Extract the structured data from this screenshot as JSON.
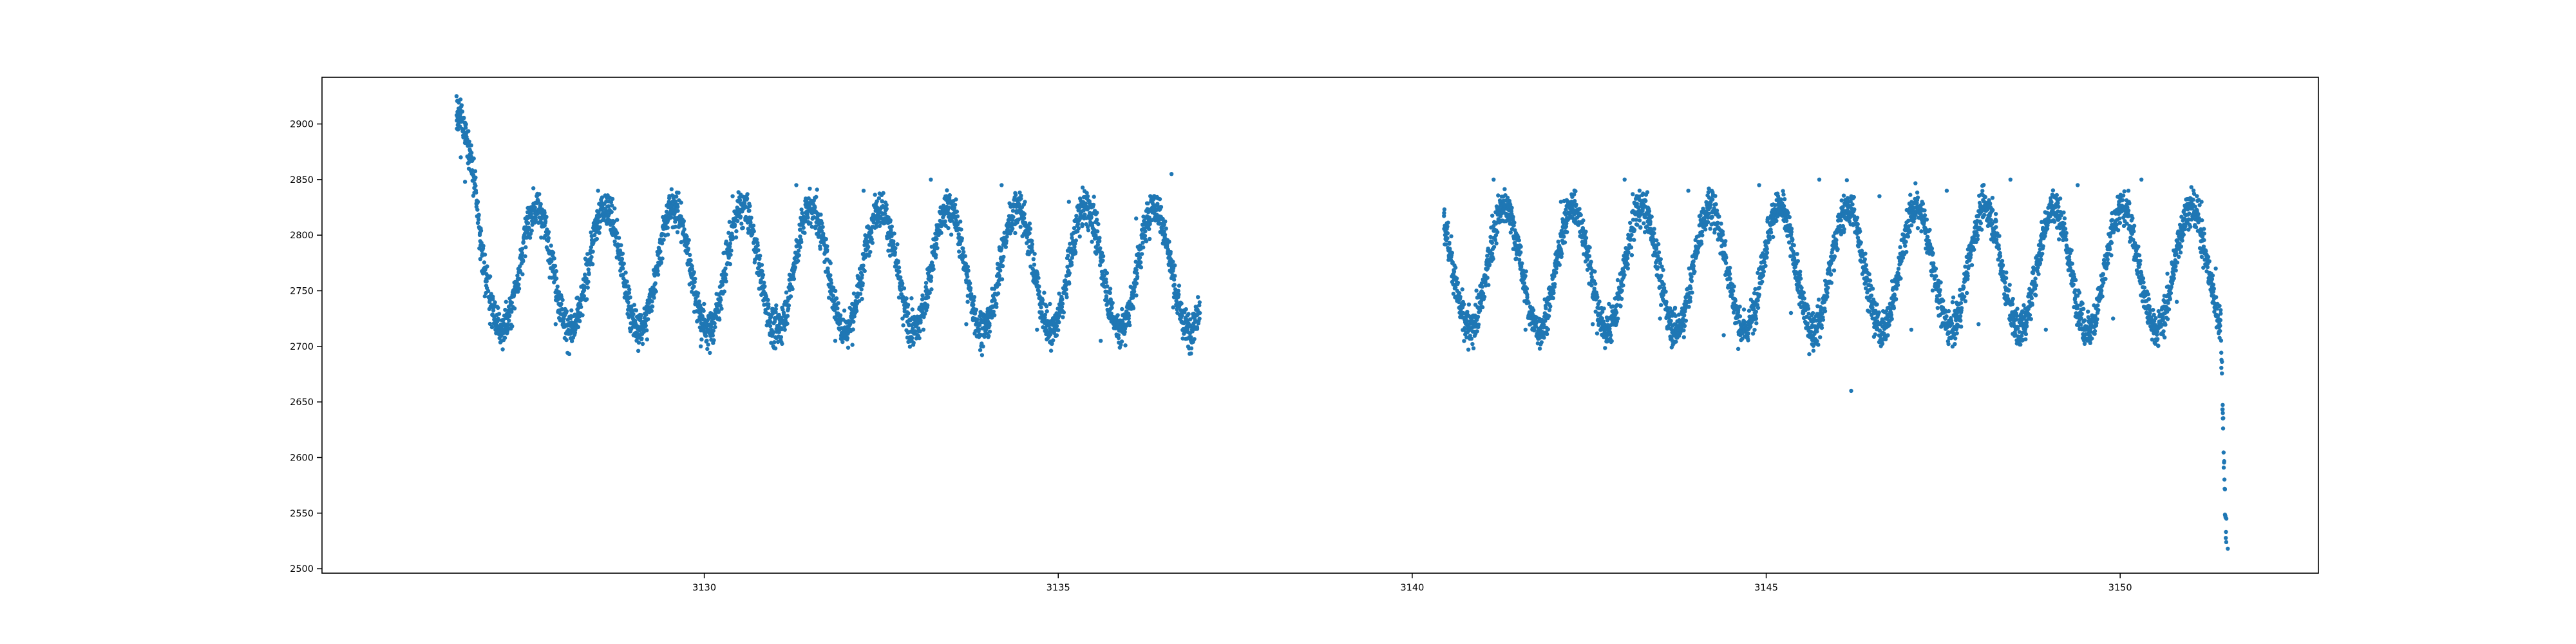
{
  "chart_data": {
    "type": "scatter",
    "title": "",
    "xlabel": "",
    "ylabel": "",
    "xlim": [
      3124.6,
      3152.8
    ],
    "ylim": [
      2496,
      2942
    ],
    "x_ticks": [
      3130,
      3135,
      3140,
      3145,
      3150
    ],
    "y_ticks": [
      2500,
      2550,
      2600,
      2650,
      2700,
      2750,
      2800,
      2850,
      2900
    ],
    "grid": false,
    "legend": "none",
    "marker_color": "#1f77b4",
    "segments": [
      {
        "x_start": 3126.5,
        "x_end": 3137.0
      },
      {
        "x_start": 3140.45,
        "x_end": 3151.5
      }
    ],
    "oscillation": {
      "period_days": 0.97,
      "center": 2770,
      "amplitude": 55,
      "scatter": 12
    },
    "series": [
      {
        "points": [
          [
            3126.5,
            2925
          ],
          [
            3126.52,
            2895
          ],
          [
            3126.56,
            2870
          ],
          [
            3126.62,
            2848
          ],
          [
            3126.9,
            2745
          ],
          [
            3127.05,
            2715
          ],
          [
            3127.2,
            2740
          ],
          [
            3127.5,
            2815
          ],
          [
            3127.9,
            2720
          ],
          [
            3128.5,
            2840
          ],
          [
            3129.0,
            2710
          ],
          [
            3129.5,
            2830
          ],
          [
            3129.95,
            2700
          ],
          [
            3130.4,
            2835
          ],
          [
            3130.9,
            2720
          ],
          [
            3131.3,
            2845
          ],
          [
            3131.85,
            2705
          ],
          [
            3132.25,
            2840
          ],
          [
            3132.8,
            2725
          ],
          [
            3133.2,
            2850
          ],
          [
            3133.7,
            2720
          ],
          [
            3134.2,
            2845
          ],
          [
            3134.7,
            2715
          ],
          [
            3135.15,
            2830
          ],
          [
            3135.6,
            2705
          ],
          [
            3136.1,
            2815
          ],
          [
            3136.6,
            2855
          ],
          [
            3137.0,
            2730
          ],
          [
            3140.45,
            2820
          ],
          [
            3140.7,
            2730
          ],
          [
            3141.15,
            2850
          ],
          [
            3141.6,
            2715
          ],
          [
            3142.1,
            2830
          ],
          [
            3142.55,
            2720
          ],
          [
            3143.0,
            2850
          ],
          [
            3143.5,
            2725
          ],
          [
            3143.9,
            2840
          ],
          [
            3144.4,
            2710
          ],
          [
            3144.9,
            2845
          ],
          [
            3145.35,
            2730
          ],
          [
            3145.75,
            2850
          ],
          [
            3146.2,
            2660
          ],
          [
            3146.6,
            2835
          ],
          [
            3147.05,
            2715
          ],
          [
            3147.55,
            2840
          ],
          [
            3148.0,
            2720
          ],
          [
            3148.45,
            2850
          ],
          [
            3148.95,
            2715
          ],
          [
            3149.4,
            2845
          ],
          [
            3149.9,
            2725
          ],
          [
            3150.3,
            2850
          ],
          [
            3150.8,
            2740
          ],
          [
            3151.15,
            2830
          ],
          [
            3151.35,
            2770
          ],
          [
            3151.45,
            2640
          ],
          [
            3151.5,
            2545
          ],
          [
            3151.52,
            2518
          ]
        ]
      }
    ]
  }
}
